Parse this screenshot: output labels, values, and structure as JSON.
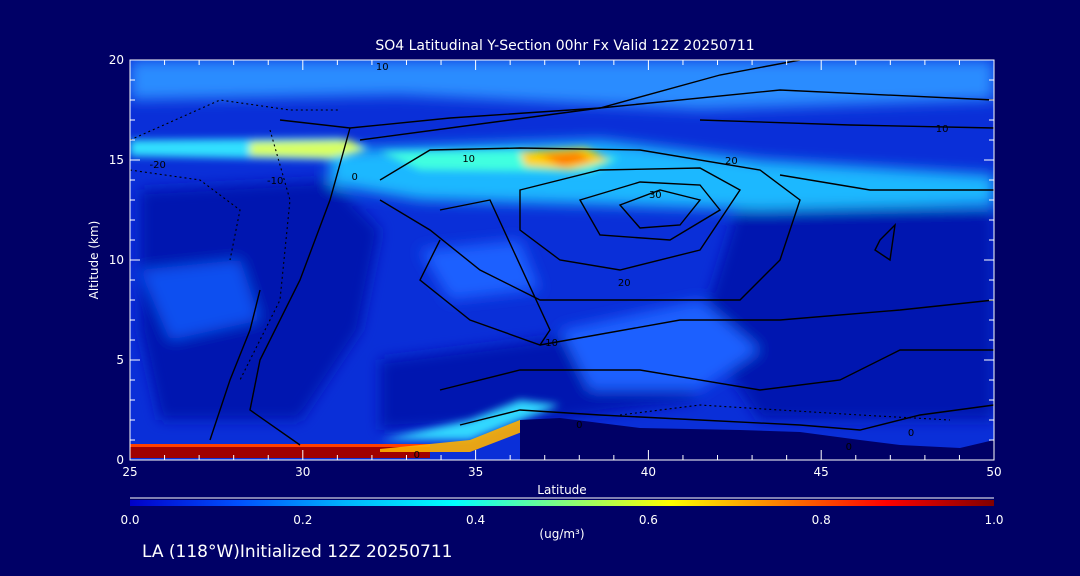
{
  "chart_data": {
    "type": "heatmap",
    "title": "SO4 Latitudinal Y-Section 00hr  Fx Valid 12Z 20250711",
    "xlabel": "Latitude",
    "ylabel": "Altitude (km)",
    "xlim": [
      25,
      50
    ],
    "ylim": [
      0,
      20
    ],
    "x_ticks": [
      25,
      30,
      35,
      40,
      45,
      50
    ],
    "y_ticks": [
      0,
      5,
      10,
      15,
      20
    ],
    "colorbar": {
      "label": "(ug/m³)",
      "range": [
        0.0,
        1.0
      ],
      "ticks": [
        "0.0",
        "0.2",
        "0.4",
        "0.6",
        "0.8",
        "1.0"
      ],
      "colors": [
        "#0000c8",
        "#0050ff",
        "#00b4ff",
        "#00ffff",
        "#80ff80",
        "#ffff00",
        "#ff8000",
        "#ff0000",
        "#800000"
      ]
    },
    "field_features": [
      {
        "name": "surface layer",
        "lat": [
          25,
          34
        ],
        "alt": [
          0.1,
          0.5
        ],
        "value": 1.0
      },
      {
        "name": "layer near 15.5 km",
        "lat": [
          25,
          33
        ],
        "alt": [
          15.2,
          16.2
        ],
        "value": 0.55
      },
      {
        "name": "peak near 37.5N",
        "lat": [
          36.5,
          39
        ],
        "alt": [
          14.4,
          15.4
        ],
        "value": 0.7
      },
      {
        "name": "upper band",
        "lat": [
          33,
          50
        ],
        "alt": [
          12.5,
          16.0
        ],
        "value": 0.35
      },
      {
        "name": "top band",
        "lat": [
          25,
          50
        ],
        "alt": [
          17.5,
          20.0
        ],
        "value": 0.25
      }
    ],
    "contour_labels": [
      {
        "text": "10",
        "lat": 32.3,
        "alt": 19.7
      },
      {
        "text": "-20",
        "lat": 25.8,
        "alt": 14.8
      },
      {
        "text": "-10",
        "lat": 29.2,
        "alt": 14.0
      },
      {
        "text": "0",
        "lat": 31.5,
        "alt": 14.2
      },
      {
        "text": "10",
        "lat": 34.8,
        "alt": 15.1
      },
      {
        "text": "20",
        "lat": 42.4,
        "alt": 15.0
      },
      {
        "text": "30",
        "lat": 40.2,
        "alt": 13.3
      },
      {
        "text": "10",
        "lat": 48.5,
        "alt": 16.6
      },
      {
        "text": "20",
        "lat": 39.3,
        "alt": 8.9
      },
      {
        "text": "10",
        "lat": 37.2,
        "alt": 5.9
      },
      {
        "text": "0",
        "lat": 38.0,
        "alt": 1.8
      },
      {
        "text": "0",
        "lat": 33.3,
        "alt": 0.3
      },
      {
        "text": "0",
        "lat": 45.8,
        "alt": 0.7
      },
      {
        "text": "0",
        "lat": 47.6,
        "alt": 1.4
      }
    ],
    "terrain_note": "",
    "footer": "LA (118°W)Initialized 12Z 20250711"
  }
}
